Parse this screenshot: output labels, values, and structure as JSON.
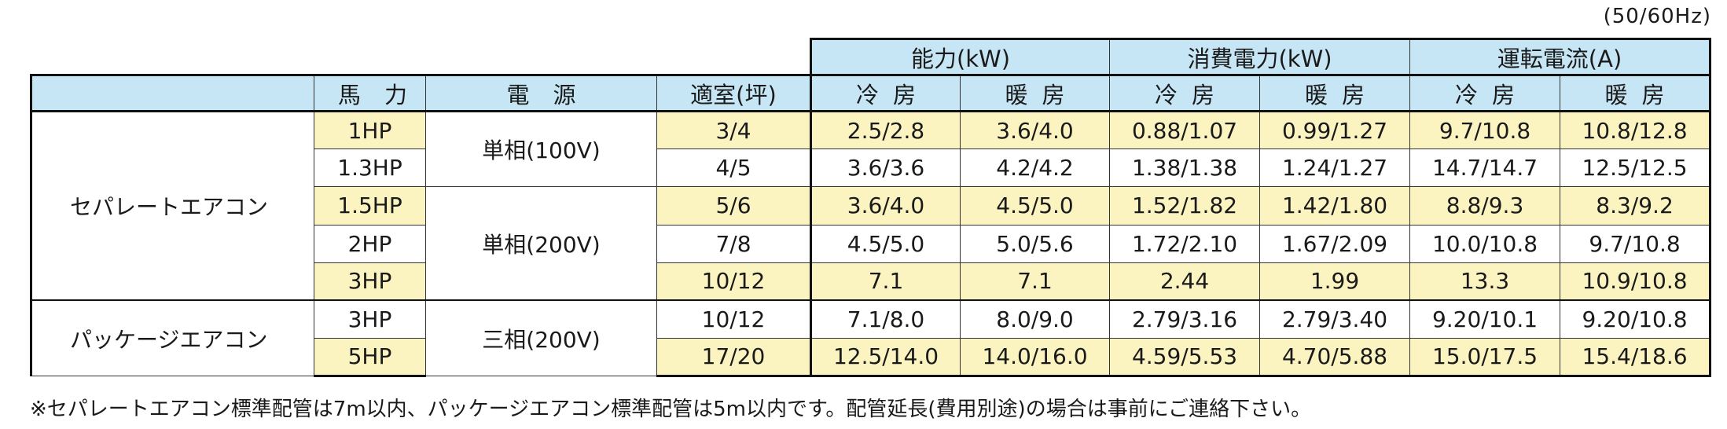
{
  "frequency_note": "(50/60Hz)",
  "group_headers": {
    "capacity": "能力(kW)",
    "power": "消費電力(kW)",
    "current": "運転電流(A)"
  },
  "column_headers": {
    "blank": "",
    "horsepower": "馬力",
    "power_source": "電源",
    "room_size": "適室(坪)",
    "cooling": "冷房",
    "heating": "暖房"
  },
  "categories": {
    "separate": "セパレートエアコン",
    "package": "パッケージエアコン"
  },
  "power_sources": {
    "single_100": "単相(100V)",
    "single_200": "単相(200V)",
    "three_200": "三相(200V)"
  },
  "rows": [
    {
      "hp": "1HP",
      "room": "3/4",
      "cap_cool": "2.5/2.8",
      "cap_heat": "3.6/4.0",
      "pw_cool": "0.88/1.07",
      "pw_heat": "0.99/1.27",
      "cur_cool": "9.7/10.8",
      "cur_heat": "10.8/12.8"
    },
    {
      "hp": "1.3HP",
      "room": "4/5",
      "cap_cool": "3.6/3.6",
      "cap_heat": "4.2/4.2",
      "pw_cool": "1.38/1.38",
      "pw_heat": "1.24/1.27",
      "cur_cool": "14.7/14.7",
      "cur_heat": "12.5/12.5"
    },
    {
      "hp": "1.5HP",
      "room": "5/6",
      "cap_cool": "3.6/4.0",
      "cap_heat": "4.5/5.0",
      "pw_cool": "1.52/1.82",
      "pw_heat": "1.42/1.80",
      "cur_cool": "8.8/9.3",
      "cur_heat": "8.3/9.2"
    },
    {
      "hp": "2HP",
      "room": "7/8",
      "cap_cool": "4.5/5.0",
      "cap_heat": "5.0/5.6",
      "pw_cool": "1.72/2.10",
      "pw_heat": "1.67/2.09",
      "cur_cool": "10.0/10.8",
      "cur_heat": "9.7/10.8"
    },
    {
      "hp": "3HP",
      "room": "10/12",
      "cap_cool": "7.1",
      "cap_heat": "7.1",
      "pw_cool": "2.44",
      "pw_heat": "1.99",
      "cur_cool": "13.3",
      "cur_heat": "10.9/10.8"
    },
    {
      "hp": "3HP",
      "room": "10/12",
      "cap_cool": "7.1/8.0",
      "cap_heat": "8.0/9.0",
      "pw_cool": "2.79/3.16",
      "pw_heat": "2.79/3.40",
      "cur_cool": "9.20/10.1",
      "cur_heat": "9.20/10.8"
    },
    {
      "hp": "5HP",
      "room": "17/20",
      "cap_cool": "12.5/14.0",
      "cap_heat": "14.0/16.0",
      "pw_cool": "4.59/5.53",
      "pw_heat": "4.70/5.88",
      "cur_cool": "15.0/17.5",
      "cur_heat": "15.4/18.6"
    }
  ],
  "footnote": "※セパレートエアコン標準配管は7m以内、パッケージエアコン標準配管は5m以内です。配管延長(費用別途)の場合は事前にご連絡下さい。",
  "colors": {
    "header_blue": "#c7e6f5",
    "row_yellow": "#fbf4c0",
    "row_white": "#ffffff",
    "border": "#111111"
  }
}
